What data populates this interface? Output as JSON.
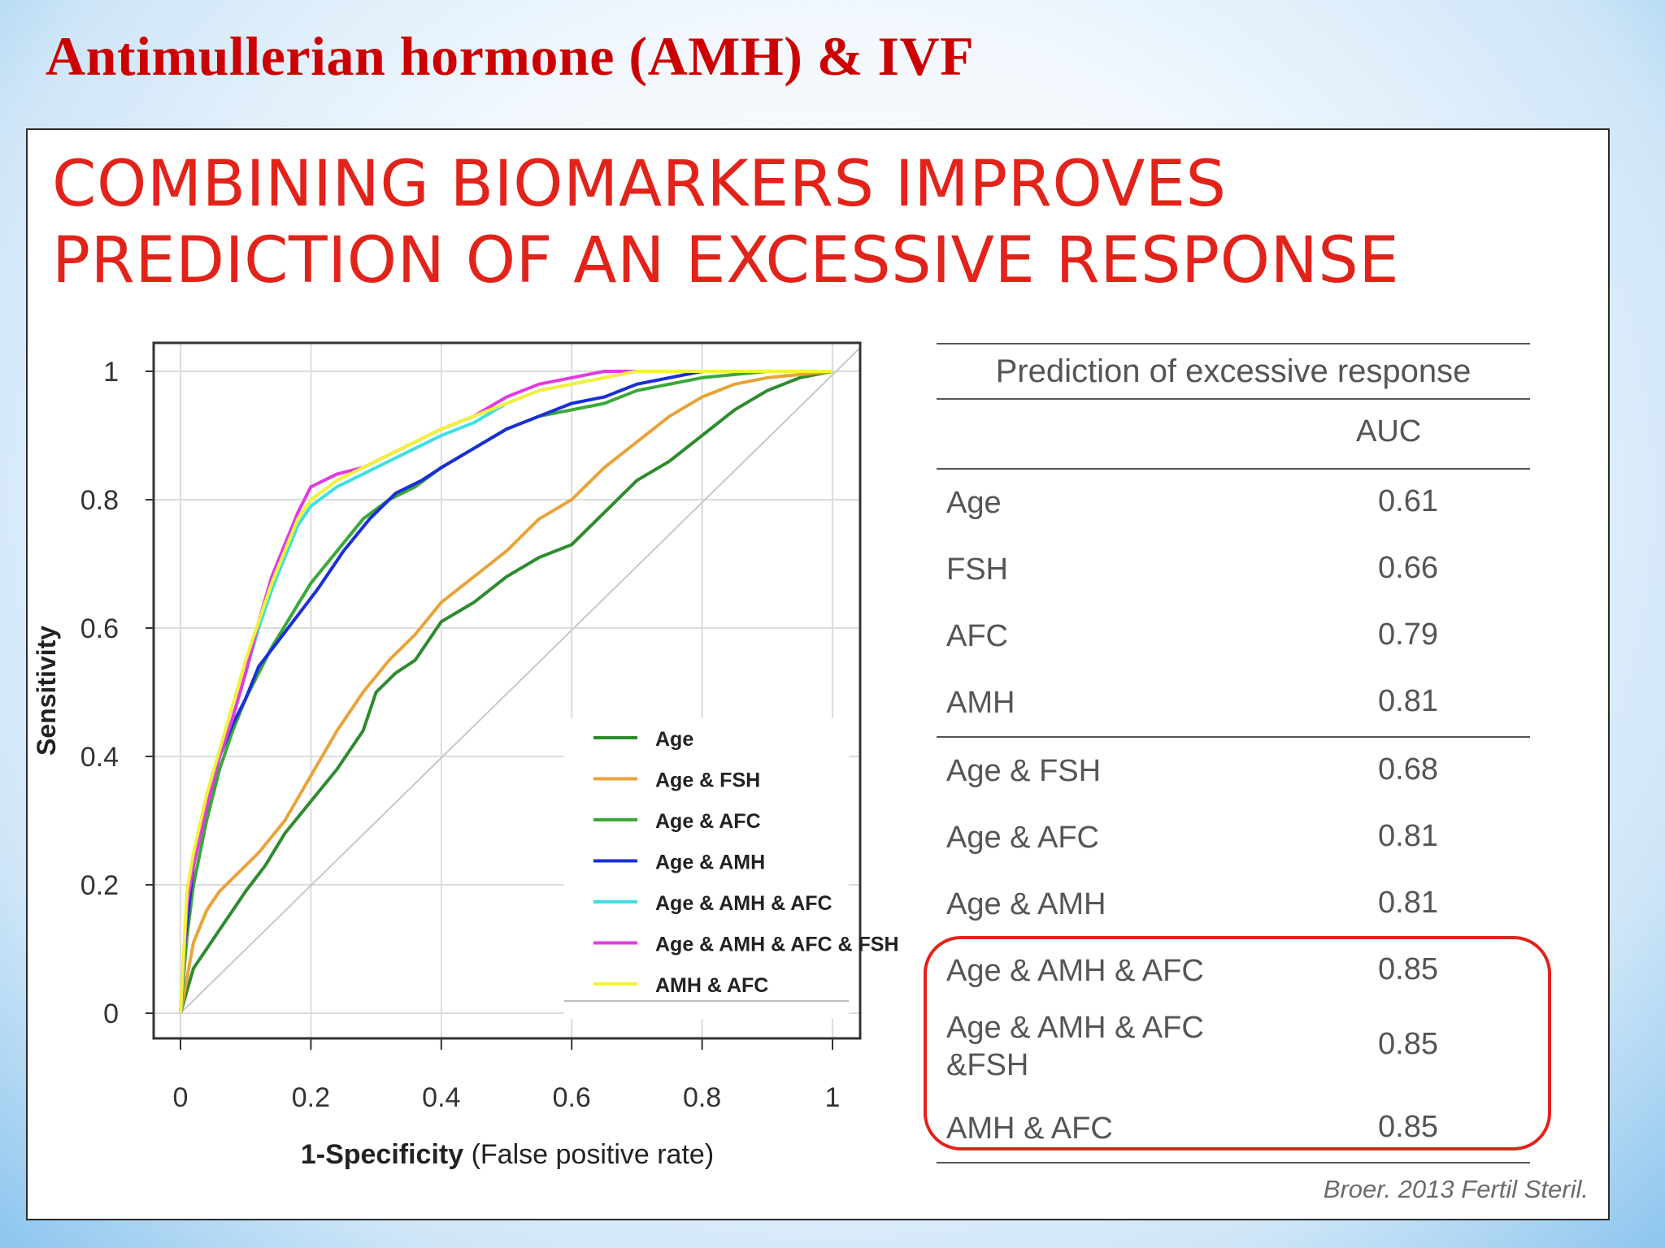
{
  "slide": {
    "title": "Antimullerian hormone (AMH) & IVF",
    "headline_line1": "COMBINING BIOMARKERS IMPROVES",
    "headline_line2": "PREDICTION OF AN EXCESSIVE RESPONSE",
    "citation": "Broer. 2013 Fertil Steril.",
    "colors": {
      "title": "#cc0000",
      "headline": "#e2231a",
      "highlight_box": "#e2231a"
    }
  },
  "chart_data": {
    "type": "line",
    "xlabel_bold": "1-Specificity",
    "xlabel_rest": "(False positive rate)",
    "ylabel": "Sensitivity",
    "xlim": [
      0,
      1
    ],
    "ylim": [
      0,
      1
    ],
    "xticks": [
      "0",
      "0.2",
      "0.4",
      "0.6",
      "0.8",
      "1"
    ],
    "yticks": [
      "0",
      "0.2",
      "0.4",
      "0.6",
      "0.8",
      "1"
    ],
    "grid": true,
    "diagonal_reference": true,
    "legend_position": "bottom-right",
    "series": [
      {
        "name": "Age",
        "color": "#2e8b2e",
        "x": [
          0,
          0.02,
          0.04,
          0.06,
          0.08,
          0.1,
          0.13,
          0.16,
          0.2,
          0.24,
          0.28,
          0.3,
          0.33,
          0.36,
          0.4,
          0.45,
          0.5,
          0.55,
          0.6,
          0.65,
          0.7,
          0.75,
          0.8,
          0.85,
          0.9,
          0.95,
          1.0
        ],
        "y": [
          0,
          0.07,
          0.1,
          0.13,
          0.16,
          0.19,
          0.23,
          0.28,
          0.33,
          0.38,
          0.44,
          0.5,
          0.53,
          0.55,
          0.61,
          0.64,
          0.68,
          0.71,
          0.73,
          0.78,
          0.83,
          0.86,
          0.9,
          0.94,
          0.97,
          0.99,
          1.0
        ]
      },
      {
        "name": "Age & FSH",
        "color": "#e8a33a",
        "x": [
          0,
          0.02,
          0.04,
          0.06,
          0.09,
          0.12,
          0.16,
          0.2,
          0.24,
          0.28,
          0.32,
          0.36,
          0.4,
          0.45,
          0.5,
          0.55,
          0.6,
          0.65,
          0.7,
          0.75,
          0.8,
          0.85,
          0.9,
          1.0
        ],
        "y": [
          0,
          0.11,
          0.16,
          0.19,
          0.22,
          0.25,
          0.3,
          0.37,
          0.44,
          0.5,
          0.55,
          0.59,
          0.64,
          0.68,
          0.72,
          0.77,
          0.8,
          0.85,
          0.89,
          0.93,
          0.96,
          0.98,
          0.99,
          1.0
        ]
      },
      {
        "name": "Age & AFC",
        "color": "#3aa83a",
        "x": [
          0,
          0.01,
          0.02,
          0.04,
          0.06,
          0.08,
          0.1,
          0.12,
          0.14,
          0.17,
          0.2,
          0.24,
          0.28,
          0.32,
          0.36,
          0.4,
          0.45,
          0.5,
          0.55,
          0.6,
          0.65,
          0.7,
          0.8,
          0.9,
          1.0
        ],
        "y": [
          0,
          0.12,
          0.2,
          0.3,
          0.38,
          0.44,
          0.49,
          0.53,
          0.57,
          0.62,
          0.67,
          0.72,
          0.77,
          0.8,
          0.82,
          0.85,
          0.88,
          0.91,
          0.93,
          0.94,
          0.95,
          0.97,
          0.99,
          1.0,
          1.0
        ]
      },
      {
        "name": "Age & AMH",
        "color": "#1a2fd6",
        "x": [
          0,
          0.005,
          0.01,
          0.02,
          0.04,
          0.06,
          0.08,
          0.1,
          0.12,
          0.15,
          0.18,
          0.21,
          0.25,
          0.29,
          0.33,
          0.37,
          0.4,
          0.45,
          0.5,
          0.55,
          0.6,
          0.65,
          0.7,
          0.8,
          0.9,
          1.0
        ],
        "y": [
          0,
          0.09,
          0.14,
          0.23,
          0.32,
          0.4,
          0.45,
          0.49,
          0.54,
          0.58,
          0.62,
          0.66,
          0.72,
          0.77,
          0.81,
          0.83,
          0.85,
          0.88,
          0.91,
          0.93,
          0.95,
          0.96,
          0.98,
          1.0,
          1.0,
          1.0
        ]
      },
      {
        "name": "Age & AMH & AFC",
        "color": "#3fe0e0",
        "x": [
          0,
          0.01,
          0.02,
          0.04,
          0.06,
          0.08,
          0.1,
          0.12,
          0.14,
          0.16,
          0.18,
          0.2,
          0.24,
          0.28,
          0.32,
          0.36,
          0.4,
          0.45,
          0.5,
          0.55,
          0.6,
          0.65,
          0.7,
          0.8,
          0.9,
          1.0
        ],
        "y": [
          0,
          0.18,
          0.24,
          0.33,
          0.4,
          0.46,
          0.53,
          0.6,
          0.66,
          0.71,
          0.76,
          0.79,
          0.82,
          0.84,
          0.86,
          0.88,
          0.9,
          0.92,
          0.95,
          0.97,
          0.98,
          0.99,
          1.0,
          1.0,
          1.0,
          1.0
        ]
      },
      {
        "name": "Age & AMH & AFC & FSH",
        "color": "#e03ce0",
        "x": [
          0,
          0.01,
          0.02,
          0.04,
          0.06,
          0.08,
          0.1,
          0.12,
          0.14,
          0.16,
          0.18,
          0.2,
          0.24,
          0.28,
          0.32,
          0.36,
          0.4,
          0.45,
          0.5,
          0.55,
          0.6,
          0.65,
          0.7,
          0.8,
          0.9,
          1.0
        ],
        "y": [
          0,
          0.17,
          0.23,
          0.32,
          0.4,
          0.46,
          0.53,
          0.61,
          0.68,
          0.73,
          0.78,
          0.82,
          0.84,
          0.85,
          0.87,
          0.89,
          0.91,
          0.93,
          0.96,
          0.98,
          0.99,
          1.0,
          1.0,
          1.0,
          1.0,
          1.0
        ]
      },
      {
        "name": "AMH & AFC",
        "color": "#f2f23a",
        "x": [
          0,
          0.01,
          0.02,
          0.04,
          0.06,
          0.08,
          0.1,
          0.12,
          0.14,
          0.16,
          0.18,
          0.2,
          0.24,
          0.28,
          0.32,
          0.36,
          0.4,
          0.45,
          0.5,
          0.55,
          0.6,
          0.65,
          0.7,
          0.8,
          0.9,
          1.0
        ],
        "y": [
          0,
          0.19,
          0.25,
          0.34,
          0.41,
          0.48,
          0.55,
          0.61,
          0.67,
          0.72,
          0.77,
          0.8,
          0.83,
          0.85,
          0.87,
          0.89,
          0.91,
          0.93,
          0.95,
          0.97,
          0.98,
          0.99,
          1.0,
          1.0,
          1.0,
          1.0
        ]
      }
    ]
  },
  "auc_table": {
    "title": "Prediction of excessive response",
    "column_header": "AUC",
    "groups": [
      {
        "rows": [
          {
            "name": "Age",
            "auc": "0.61"
          },
          {
            "name": "FSH",
            "auc": "0.66"
          },
          {
            "name": "AFC",
            "auc": "0.79"
          },
          {
            "name": "AMH",
            "auc": "0.81"
          }
        ]
      },
      {
        "rows": [
          {
            "name": "Age & FSH",
            "auc": "0.68"
          },
          {
            "name": "Age & AFC",
            "auc": "0.81"
          },
          {
            "name": "Age & AMH",
            "auc": "0.81"
          }
        ]
      },
      {
        "highlighted": true,
        "rows": [
          {
            "name": "Age & AMH & AFC",
            "auc": "0.85"
          },
          {
            "name": "Age & AMH & AFC &FSH",
            "auc": "0.85"
          },
          {
            "name": "AMH & AFC",
            "auc": "0.85"
          }
        ]
      }
    ]
  }
}
